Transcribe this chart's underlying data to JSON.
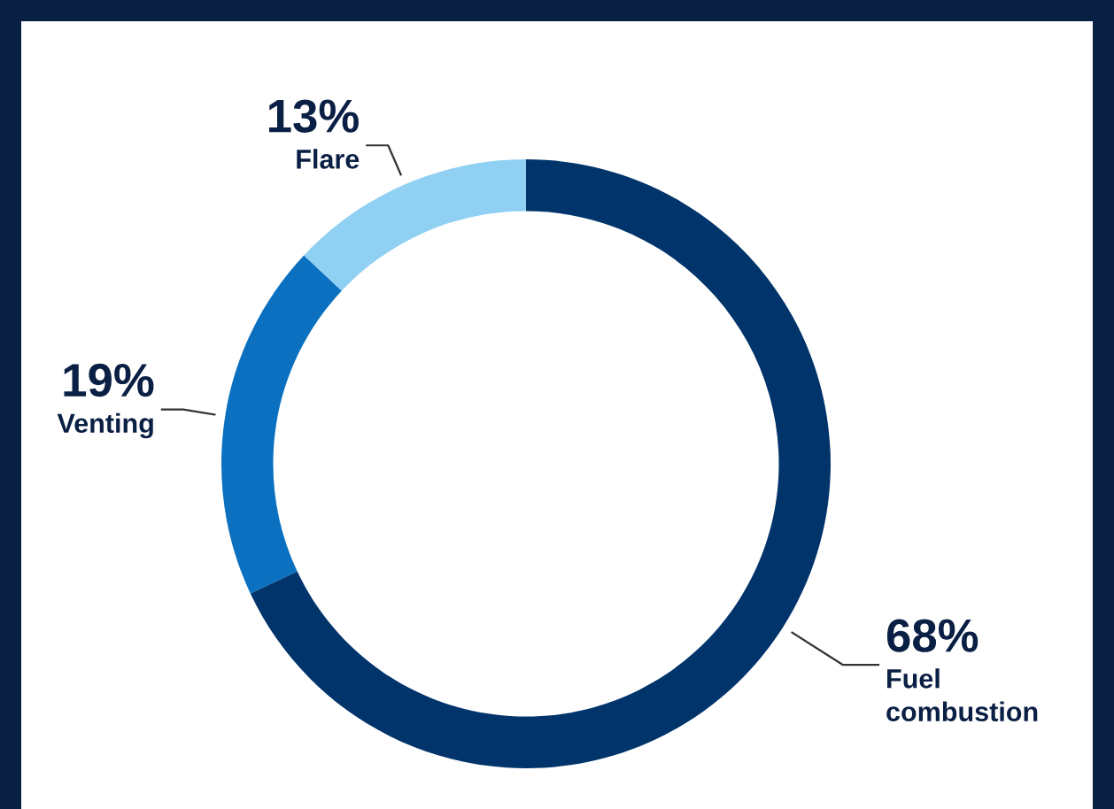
{
  "chart_data": {
    "type": "donut",
    "categories": [
      "Fuel combustion",
      "Venting",
      "Flare"
    ],
    "values": [
      68,
      19,
      13
    ],
    "colors": [
      "#00346b",
      "#0a70bf",
      "#8fd0f3"
    ],
    "value_labels": [
      "68%",
      "19%",
      "13%"
    ]
  }
}
